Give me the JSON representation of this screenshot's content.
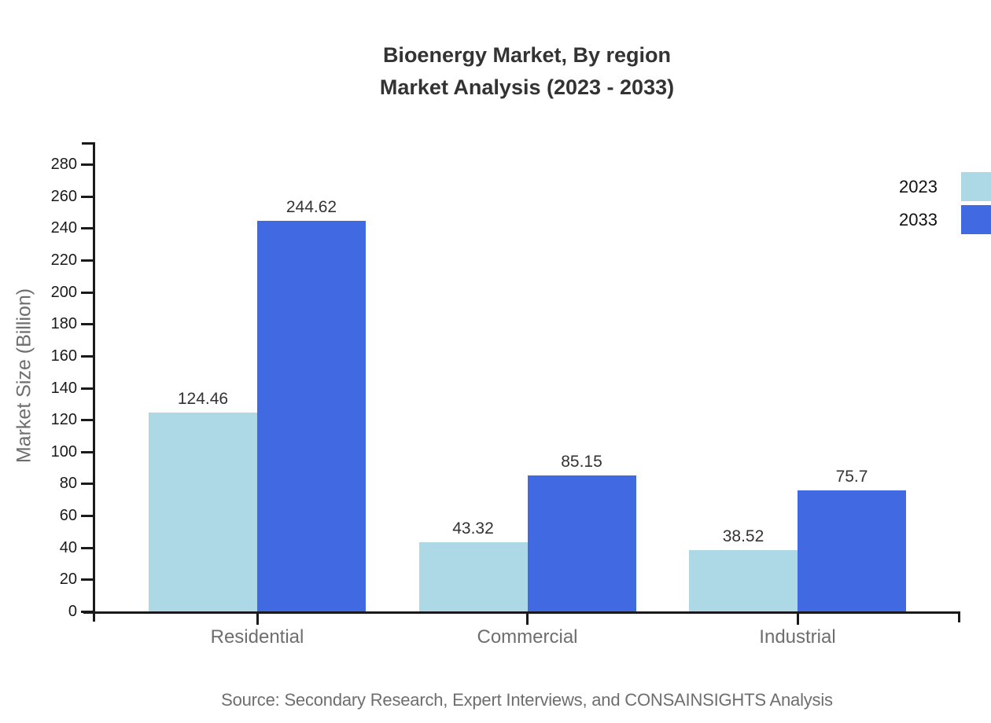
{
  "title": {
    "line1": "Bioenergy Market, By region",
    "line2": "Market Analysis (2023 - 2033)"
  },
  "footer": {
    "source": "Source: Secondary Research, Expert Interviews, and CONSAINSIGHTS Analysis"
  },
  "colors": {
    "series_2023": "#ADD8E6",
    "series_2033": "#4169E1",
    "axis": "#1a1a1a",
    "title_text": "#333333",
    "muted_text": "#6e6e6e"
  },
  "chart_data": {
    "type": "bar",
    "title": "Bioenergy Market, By region — Market Analysis (2023 - 2033)",
    "categories": [
      "Residential",
      "Commercial",
      "Industrial"
    ],
    "series": [
      {
        "name": "2023",
        "color": "#ADD8E6",
        "values": [
          124.46,
          43.32,
          38.52
        ],
        "labels": [
          "124.46",
          "43.32",
          "38.52"
        ]
      },
      {
        "name": "2033",
        "color": "#4169E1",
        "values": [
          244.62,
          85.15,
          75.7
        ],
        "labels": [
          "244.62",
          "85.15",
          "75.7"
        ]
      }
    ],
    "xlabel": "",
    "ylabel": "Market Size (Billion)",
    "ylim": [
      0,
      290
    ],
    "yticks": [
      0,
      20,
      40,
      60,
      80,
      100,
      120,
      140,
      160,
      180,
      200,
      220,
      240,
      260,
      280
    ],
    "grid": false,
    "legend_position": "top-right",
    "bar_value_labels": true
  }
}
